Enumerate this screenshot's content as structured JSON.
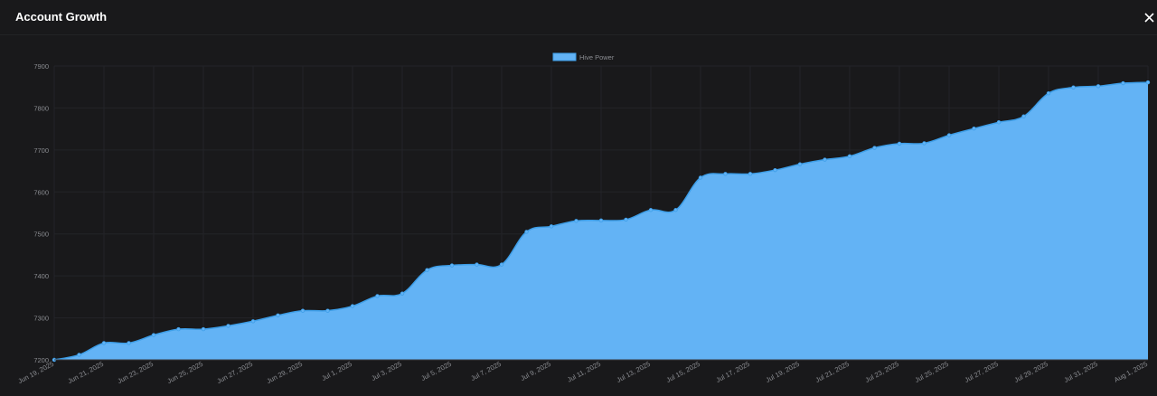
{
  "modal": {
    "title": "Account Growth",
    "close_icon": "close-icon"
  },
  "colors": {
    "background": "#19191b",
    "area_fill": "#63b3f5",
    "line": "#3d9ee8",
    "grid": "#232428",
    "tick_text": "#8a8c91"
  },
  "chart_data": {
    "type": "area",
    "legend": {
      "position": "top-center",
      "entries": [
        "Hive Power"
      ]
    },
    "series": [
      {
        "name": "Hive Power",
        "values": [
          7200,
          7212,
          7240,
          7240,
          7259,
          7273,
          7273,
          7281,
          7292,
          7306,
          7317,
          7317,
          7328,
          7352,
          7358,
          7414,
          7425,
          7427,
          7427,
          7505,
          7518,
          7531,
          7532,
          7534,
          7557,
          7557,
          7634,
          7643,
          7643,
          7652,
          7666,
          7677,
          7685,
          7705,
          7715,
          7716,
          7735,
          7751,
          7766,
          7780,
          7835,
          7849,
          7852,
          7859,
          7861
        ]
      }
    ],
    "x_tick_labels": [
      "Jun 19, 2025",
      "Jun 21, 2025",
      "Jun 23, 2025",
      "Jun 25, 2025",
      "Jun 27, 2025",
      "Jun 29, 2025",
      "Jul 1, 2025",
      "Jul 3, 2025",
      "Jul 5, 2025",
      "Jul 7, 2025",
      "Jul 9, 2025",
      "Jul 11, 2025",
      "Jul 13, 2025",
      "Jul 15, 2025",
      "Jul 17, 2025",
      "Jul 19, 2025",
      "Jul 21, 2025",
      "Jul 23, 2025",
      "Jul 25, 2025",
      "Jul 27, 2025",
      "Jul 29, 2025",
      "Jul 31, 2025",
      "Aug 1, 2025"
    ],
    "y_ticks": [
      7200,
      7300,
      7400,
      7500,
      7600,
      7700,
      7800,
      7900
    ],
    "ylim": [
      7200,
      7900
    ],
    "grid": true,
    "title": "",
    "xlabel": "",
    "ylabel": ""
  }
}
